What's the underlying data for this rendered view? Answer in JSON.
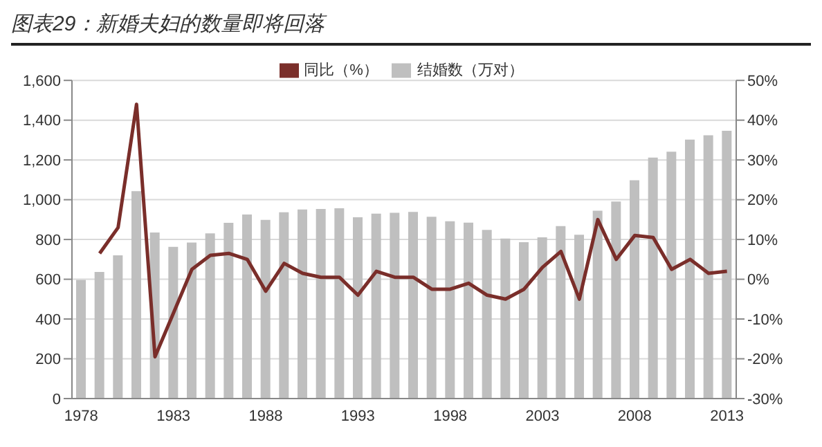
{
  "chart_data": {
    "type": "bar",
    "title": "图表29：新婚夫妇的数量即将回落",
    "categories": [
      "1978",
      null,
      null,
      null,
      null,
      "1983",
      null,
      null,
      null,
      null,
      "1988",
      null,
      null,
      null,
      null,
      "1993",
      null,
      null,
      null,
      null,
      "1998",
      null,
      null,
      null,
      null,
      "2003",
      null,
      null,
      null,
      null,
      "2008",
      null,
      null,
      null,
      null,
      "2013"
    ],
    "series": [
      {
        "name": "结婚数（万对）",
        "color": "#bfbfbf",
        "values": [
          597,
          637,
          720,
          1043,
          835,
          763,
          785,
          831,
          884,
          926,
          899,
          937,
          951,
          953,
          957,
          912,
          930,
          934,
          939,
          914,
          892,
          885,
          848,
          805,
          786,
          811,
          867,
          824,
          945,
          991,
          1098,
          1212,
          1241,
          1302,
          1324,
          1347
        ]
      },
      {
        "name": "同比（%）",
        "type": "line",
        "axis": "y2",
        "color": "#7a2e2a",
        "values": [
          null,
          6.5,
          13,
          44,
          -19.5,
          -8.5,
          2.5,
          6,
          6.5,
          5,
          -3,
          4,
          1.5,
          0.5,
          0.5,
          -4,
          2,
          0.5,
          0.5,
          -2.5,
          -2.5,
          -1,
          -4,
          -5,
          -2.5,
          3,
          7,
          -5,
          15,
          5,
          11,
          10.5,
          2.5,
          5,
          1.5,
          2
        ]
      }
    ],
    "ylim": [
      0,
      1600
    ],
    "yticks": [
      0,
      200,
      400,
      600,
      800,
      {
        "value": 1000,
        "label": "1,000"
      },
      {
        "value": 1200,
        "label": "1,200"
      },
      {
        "value": 1400,
        "label": "1,400"
      },
      {
        "value": 1600,
        "label": "1,600"
      }
    ],
    "y2lim": [
      -30,
      50
    ],
    "y2ticks": [
      {
        "value": -30,
        "label": "-30%"
      },
      {
        "value": -20,
        "label": "-20%"
      },
      {
        "value": -10,
        "label": "-10%"
      },
      {
        "value": 0,
        "label": "0%"
      },
      {
        "value": 10,
        "label": "10%"
      },
      {
        "value": 20,
        "label": "20%"
      },
      {
        "value": 30,
        "label": "30%"
      },
      {
        "value": 40,
        "label": "40%"
      },
      {
        "value": 50,
        "label": "50%"
      }
    ],
    "grid": "y",
    "legend": "top",
    "marker": "none",
    "line_style": "solid"
  }
}
